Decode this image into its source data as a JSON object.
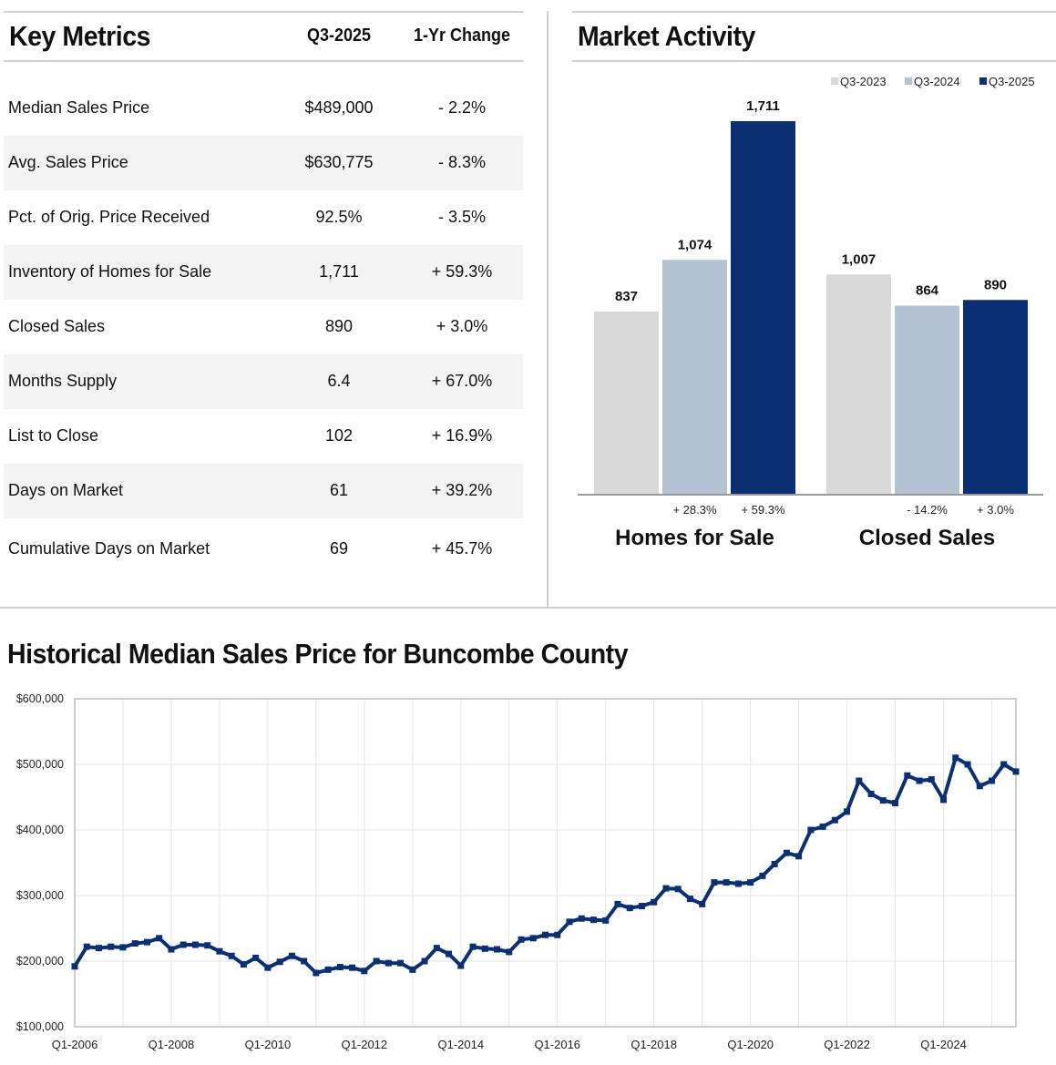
{
  "key_metrics": {
    "title": "Key Metrics",
    "col_period": "Q3-2025",
    "col_change": "1-Yr Change",
    "rows": [
      {
        "label": "Median Sales Price",
        "value": "$489,000",
        "change": "- 2.2%"
      },
      {
        "label": "Avg. Sales Price",
        "value": "$630,775",
        "change": "- 8.3%"
      },
      {
        "label": "Pct. of Orig. Price Received",
        "value": "92.5%",
        "change": "- 3.5%"
      },
      {
        "label": "Inventory of Homes for Sale",
        "value": "1,711",
        "change": "+ 59.3%"
      },
      {
        "label": "Closed Sales",
        "value": "890",
        "change": "+ 3.0%"
      },
      {
        "label": "Months Supply",
        "value": "6.4",
        "change": "+ 67.0%"
      },
      {
        "label": "List to Close",
        "value": "102",
        "change": "+ 16.9%"
      },
      {
        "label": "Days on Market",
        "value": "61",
        "change": "+ 39.2%"
      },
      {
        "label": "Cumulative Days on Market",
        "value": "69",
        "change": "+ 45.7%"
      }
    ]
  },
  "market_activity": {
    "title": "Market Activity"
  },
  "historical": {
    "title": "Historical Median Sales Price for Buncombe County"
  },
  "chart_data": [
    {
      "type": "bar",
      "title": "Market Activity",
      "categories": [
        "Homes for Sale",
        "Closed Sales"
      ],
      "series": [
        {
          "name": "Q3-2023",
          "values": [
            837,
            1007
          ],
          "color": "#d9d9d9"
        },
        {
          "name": "Q3-2024",
          "values": [
            1074,
            864
          ],
          "color": "#b4c3d3"
        },
        {
          "name": "Q3-2025",
          "values": [
            1711,
            890
          ],
          "color": "#0b2f73"
        }
      ],
      "value_labels": [
        [
          "837",
          "1,074",
          "1,711"
        ],
        [
          "1,007",
          "864",
          "890"
        ]
      ],
      "change_labels": [
        [
          "",
          "+ 28.3%",
          "+ 59.3%"
        ],
        [
          "",
          "- 14.2%",
          "+ 3.0%"
        ]
      ],
      "legend_position": "top-right",
      "ylim": [
        0,
        1800
      ]
    },
    {
      "type": "line",
      "title": "Historical Median Sales Price for Buncombe County",
      "x_start": "Q1-2006",
      "x_tick_labels": [
        "Q1-2006",
        "Q1-2008",
        "Q1-2010",
        "Q1-2012",
        "Q1-2014",
        "Q1-2016",
        "Q1-2018",
        "Q1-2020",
        "Q1-2022",
        "Q1-2024"
      ],
      "y_tick_labels": [
        "$100,000",
        "$200,000",
        "$300,000",
        "$400,000",
        "$500,000",
        "$600,000"
      ],
      "ylim": [
        100000,
        600000
      ],
      "grid": true,
      "color": "#0b2f73",
      "values": [
        192000,
        222000,
        220000,
        222000,
        221000,
        227000,
        229000,
        235000,
        218000,
        225000,
        225000,
        224000,
        215000,
        208000,
        195000,
        205000,
        190000,
        199000,
        208000,
        200000,
        182000,
        187000,
        191000,
        190000,
        185000,
        200000,
        197000,
        197000,
        187000,
        200000,
        220000,
        211000,
        193000,
        222000,
        219000,
        218000,
        214000,
        233000,
        235000,
        240000,
        240000,
        260000,
        265000,
        263000,
        262000,
        287000,
        281000,
        284000,
        290000,
        311000,
        310000,
        295000,
        287000,
        320000,
        320000,
        318000,
        320000,
        330000,
        348000,
        365000,
        360000,
        400000,
        405000,
        415000,
        428000,
        475000,
        455000,
        445000,
        441000,
        483000,
        475000,
        477000,
        446000,
        510000,
        500000,
        467000,
        475000,
        500000,
        489000
      ]
    }
  ]
}
